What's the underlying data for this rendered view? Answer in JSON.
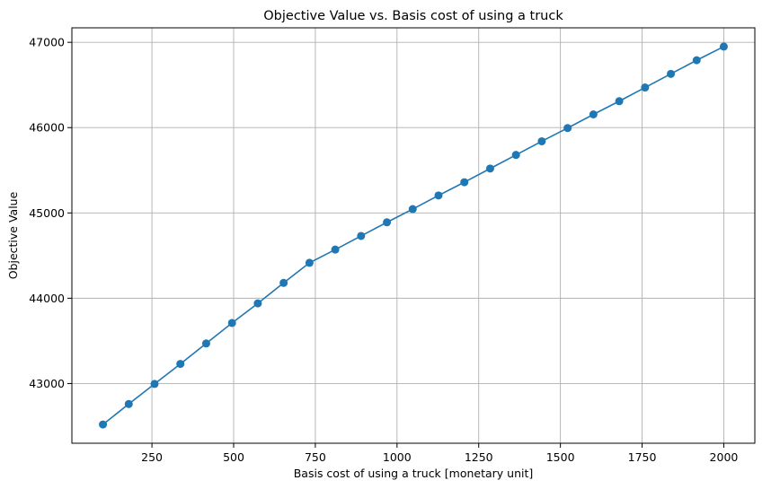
{
  "chart_data": {
    "type": "line",
    "title": "Objective Value vs. Basis cost of using a truck",
    "xlabel": "Basis cost of using a truck [monetary unit]",
    "ylabel": "Objective Value",
    "xlim": [
      5,
      2095
    ],
    "ylim": [
      42300,
      47170
    ],
    "xticks": [
      250,
      500,
      750,
      1000,
      1250,
      1500,
      1750,
      2000
    ],
    "yticks": [
      43000,
      44000,
      45000,
      46000,
      47000
    ],
    "grid": true,
    "marker": "circle",
    "color": "#1f77b4",
    "series": [
      {
        "x": [
          100,
          179,
          258,
          337,
          416,
          495,
          574,
          653,
          732,
          811,
          890,
          969,
          1048,
          1127,
          1206,
          1285,
          1364,
          1443,
          1522,
          1601,
          1680,
          1759,
          1838,
          1917,
          2000
        ],
        "values": [
          42520,
          42760,
          42995,
          43230,
          43470,
          43710,
          43940,
          44180,
          44415,
          44570,
          44730,
          44890,
          45045,
          45205,
          45360,
          45520,
          45680,
          45840,
          45995,
          46155,
          46310,
          46470,
          46630,
          46790,
          46950
        ]
      }
    ]
  }
}
